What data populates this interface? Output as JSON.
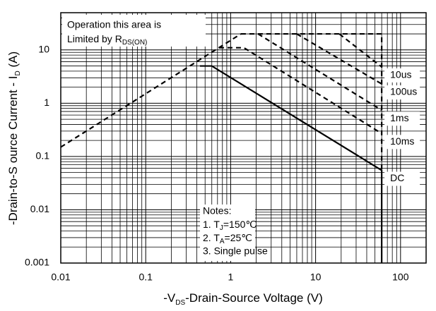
{
  "chart_data": {
    "type": "line",
    "xlabel": [
      "-V",
      "DS",
      "-Drain-Source Voltage (V)"
    ],
    "ylabel": [
      "-Drain-to-S ource Current - I",
      "D",
      " (A)"
    ],
    "annotation": [
      "Operation this area is",
      "Limited  by R",
      "DS(ON)"
    ],
    "notes": [
      "Notes:",
      "1. T",
      "J",
      "=150℃",
      "2. T",
      "A",
      "=25℃",
      "3. Single pulse"
    ],
    "xlim": [
      0.01,
      200
    ],
    "ylim": [
      0.001,
      50
    ],
    "xticks": [
      0.01,
      0.1,
      1,
      10,
      100
    ],
    "yticks": [
      0.001,
      0.01,
      0.1,
      1,
      10
    ],
    "log_x": true,
    "log_y": true,
    "grid": true,
    "minor_grid": true,
    "color": "#000000",
    "series": [
      {
        "x": [
          0.01,
          1.32
        ],
        "values": [
          0.15,
          20
        ],
        "dash": true
      },
      {
        "x": [
          1.32,
          60,
          60
        ],
        "values": [
          20,
          20,
          0.055
        ],
        "dash": true
      },
      {
        "name": "10us",
        "x": [
          19,
          60
        ],
        "values": [
          20,
          4.8
        ],
        "dash": true
      },
      {
        "name": "100us",
        "x": [
          6,
          60
        ],
        "values": [
          20,
          2.3
        ],
        "dash": true
      },
      {
        "name": "1ms",
        "x": [
          2.1,
          60
        ],
        "values": [
          20,
          0.74
        ],
        "dash": true
      },
      {
        "name": "10ms",
        "x": [
          0.73,
          1.43,
          60
        ],
        "values": [
          11,
          11,
          0.27
        ],
        "dash": true
      },
      {
        "name": "DC",
        "x": [
          0.435,
          0.6,
          60,
          60
        ],
        "values": [
          5,
          5,
          0.055,
          0.001
        ],
        "dash": false
      }
    ]
  }
}
